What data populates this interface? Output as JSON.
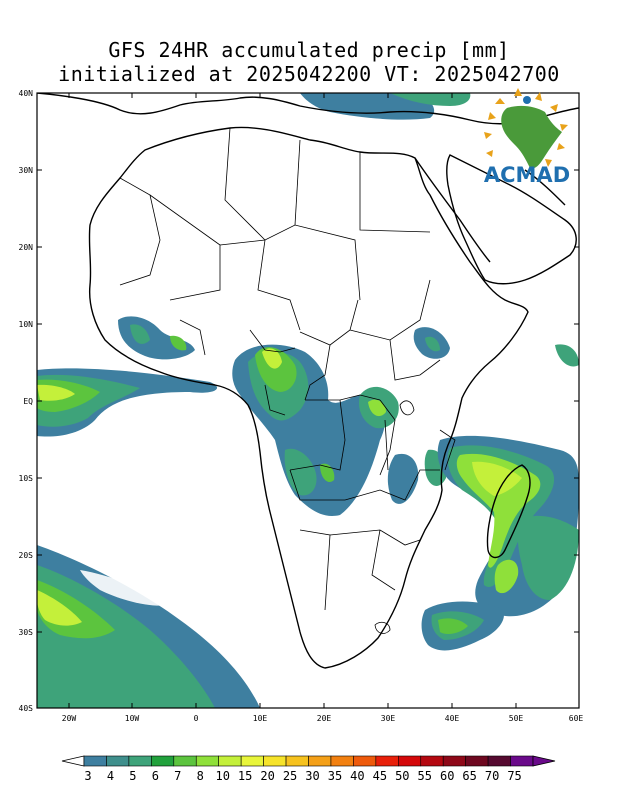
{
  "title": {
    "line1": "GFS 24HR accumulated precip [mm]",
    "line2": "initialized at 2025042200 VT: 2025042700"
  },
  "logo": {
    "text": "ACMAD",
    "color": "#1f6faf",
    "accent": "#e8a21a",
    "continent_color": "#4a9a3a"
  },
  "map": {
    "lat_labels": [
      "40N",
      "30N",
      "20N",
      "10N",
      "EQ",
      "10S",
      "20S",
      "30S",
      "40S"
    ],
    "lon_labels": [
      "20W",
      "10W",
      "0",
      "10E",
      "20E",
      "30E",
      "40E",
      "50E",
      "60E"
    ]
  },
  "colorbar": {
    "labels": [
      "3",
      "4",
      "5",
      "6",
      "7",
      "8",
      "10",
      "15",
      "20",
      "25",
      "30",
      "35",
      "40",
      "45",
      "50",
      "55",
      "60",
      "65",
      "70",
      "75"
    ],
    "colors": [
      "#ffffff",
      "#3e7fa0",
      "#3f8f8c",
      "#3ea37a",
      "#21a13c",
      "#5cc43e",
      "#8fe03a",
      "#c4f03a",
      "#e8f53a",
      "#f6e32a",
      "#f6c21e",
      "#f4a018",
      "#f28010",
      "#ee5a0c",
      "#e8200a",
      "#d4080a",
      "#b40810",
      "#8e0818",
      "#6e0820",
      "#560a30",
      "#6a0a8a"
    ]
  }
}
